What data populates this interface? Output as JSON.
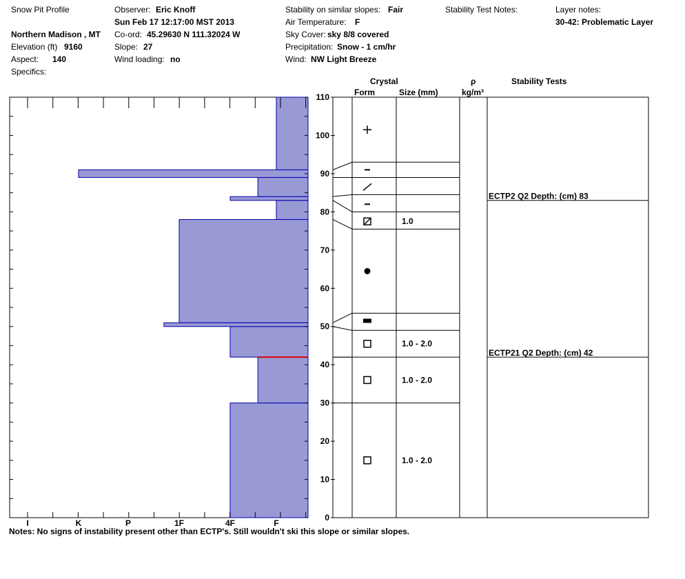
{
  "header": {
    "title": "Snow Pit Profile",
    "location": "Northern Madison , MT",
    "elevation_label": "Elevation (ft)",
    "elevation_value": "9160",
    "aspect_label": "Aspect:",
    "aspect_value": "140",
    "specifics_label": "Specifics:",
    "observer_label": "Observer:",
    "observer_value": "Eric Knoff",
    "date": "Sun Feb 17 12:17:00 MST 2013",
    "coord_label": "Co-ord:",
    "coord_value": "45.29630 N 111.32024 W",
    "slope_label": "Slope:",
    "slope_value": "27",
    "wind_loading_label": "Wind loading:",
    "wind_loading_value": "no",
    "stability_label": "Stability on similar slopes:",
    "stability_value": "Fair",
    "air_temp_label": "Air Temperature:",
    "air_temp_value": "F",
    "sky_label": "Sky Cover:",
    "sky_value": "sky 8/8 covered",
    "precip_label": "Precipitation:",
    "precip_value": "Snow - 1 cm/hr",
    "wind_label": "Wind:",
    "wind_value": "NW Light Breeze",
    "stability_notes_label": "Stability Test Notes:",
    "layer_notes_label": "Layer notes:",
    "layer_notes_value": "30-42: Problematic Layer"
  },
  "table_headers": {
    "crystal": "Crystal",
    "form": "Form",
    "size": "Size (mm)",
    "rho": "ρ",
    "density_unit": "kg/m³",
    "stability_tests": "Stability Tests"
  },
  "notes": "Notes:  No signs of instability present other than ECTP's.  Still wouldn't ski this slope or similar slopes.",
  "chart_data": {
    "type": "bar",
    "orientation": "horizontal",
    "ylim": [
      0,
      110
    ],
    "y_ticks": [
      0,
      10,
      20,
      30,
      40,
      50,
      60,
      70,
      80,
      90,
      100,
      110
    ],
    "hardness_ticks": [
      "I",
      "K",
      "P",
      "1F",
      "4F",
      "F"
    ],
    "hardness_scale_note": "bars extend from right edge (F) leftward; value = position on hardness axis",
    "hardness_layers": [
      {
        "bottom": 0,
        "top": 30,
        "hardness": "4F"
      },
      {
        "bottom": 30,
        "top": 42,
        "hardness": "4F-F"
      },
      {
        "bottom": 42,
        "top": 50,
        "hardness": "4F"
      },
      {
        "bottom": 50,
        "top": 51,
        "hardness": "1F-"
      },
      {
        "bottom": 51,
        "top": 78,
        "hardness": "1F"
      },
      {
        "bottom": 78,
        "top": 83,
        "hardness": "F"
      },
      {
        "bottom": 83,
        "top": 84,
        "hardness": "4F"
      },
      {
        "bottom": 84,
        "top": 89,
        "hardness": "4F-F"
      },
      {
        "bottom": 89,
        "top": 91,
        "hardness": "K"
      },
      {
        "bottom": 91,
        "top": 110,
        "hardness": "F"
      }
    ],
    "hardness_values_rel": [
      {
        "bottom": 0,
        "top": 30,
        "value": 4
      },
      {
        "bottom": 30,
        "top": 42,
        "value": 4.6
      },
      {
        "bottom": 42,
        "top": 50,
        "value": 4
      },
      {
        "bottom": 50,
        "top": 51,
        "value": 2.7
      },
      {
        "bottom": 51,
        "top": 78,
        "value": 3
      },
      {
        "bottom": 78,
        "top": 83,
        "value": 5
      },
      {
        "bottom": 83,
        "top": 84,
        "value": 4
      },
      {
        "bottom": 84,
        "top": 89,
        "value": 4.6
      },
      {
        "bottom": 89,
        "top": 91,
        "value": 1
      },
      {
        "bottom": 91,
        "top": 110,
        "value": 5
      }
    ],
    "problem_interface_depth": 42,
    "layer_boundaries_right": [
      93,
      89,
      84.5,
      80,
      75.5,
      53.5,
      49,
      42,
      30
    ],
    "layer_boundaries_left": [
      91,
      89,
      84,
      83,
      78,
      51,
      50,
      42,
      30
    ],
    "crystals": [
      {
        "height": 101.5,
        "form": "plus"
      },
      {
        "height": 91,
        "form": "minus"
      },
      {
        "height": 86.5,
        "form": "slash"
      },
      {
        "height": 82,
        "form": "minus"
      },
      {
        "height": 77.5,
        "form": "boxslash",
        "size": "1.0"
      },
      {
        "height": 64.5,
        "form": "dot"
      },
      {
        "height": 51.5,
        "form": "bar"
      },
      {
        "height": 45.5,
        "form": "square",
        "size": "1.0 - 2.0"
      },
      {
        "height": 36,
        "form": "square",
        "size": "1.0 - 2.0"
      },
      {
        "height": 15,
        "form": "square",
        "size": "1.0 - 2.0"
      }
    ],
    "stability_tests": [
      {
        "depth_height": 83,
        "label": "ECTP2 Q2 Depth: (cm) 83"
      },
      {
        "depth_height": 42,
        "label": "ECTP21 Q2 Depth: (cm) 42"
      }
    ],
    "colors": {
      "bar_fill": "#9999d6",
      "bar_stroke": "#0000aa",
      "problem_line": "#dd0000"
    }
  }
}
